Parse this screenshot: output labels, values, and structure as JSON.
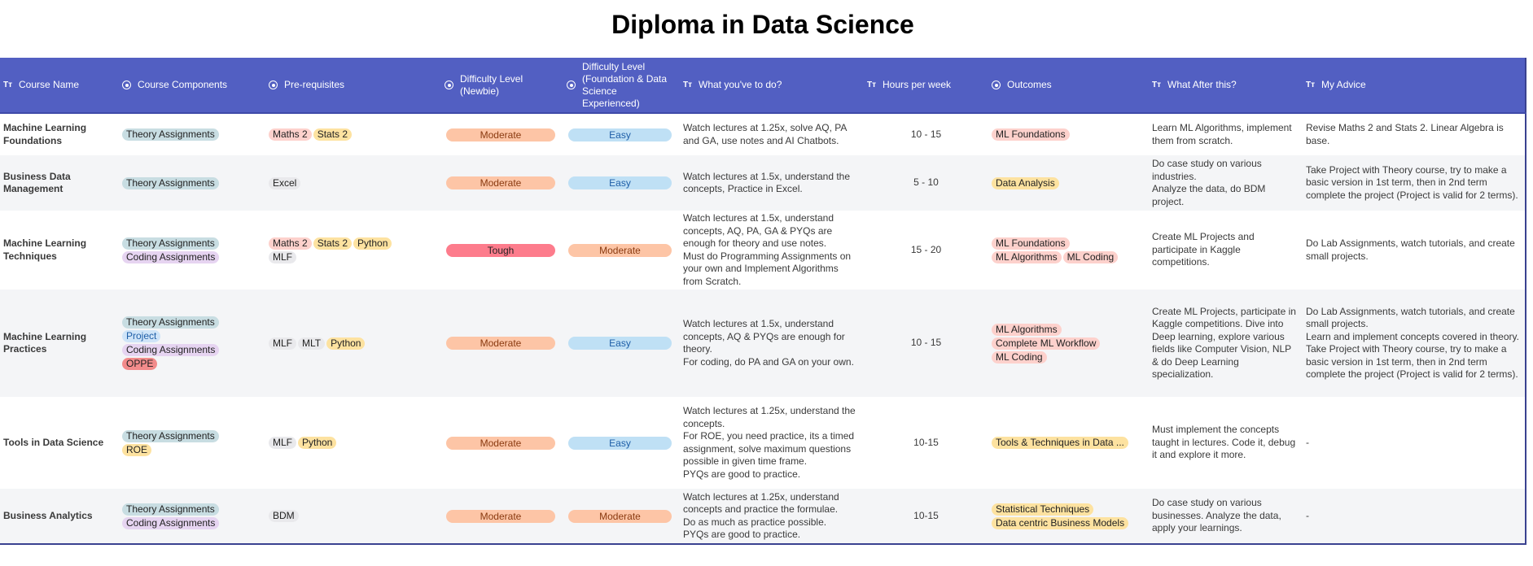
{
  "title": "Diploma in Data Science",
  "colors": {
    "header": "#525fc2",
    "Moderate": "#fdc5a6",
    "Easy": "#bfe0f5",
    "Tough": "#fd7c8c"
  },
  "columns": [
    {
      "label": "Course Name",
      "icon": "text-type-icon"
    },
    {
      "label": "Course Components",
      "icon": "select-icon"
    },
    {
      "label": "Pre-requisites",
      "icon": "select-icon"
    },
    {
      "label": "Difficulty Level (Newbie)",
      "icon": "select-icon"
    },
    {
      "label": "Difficulty Level (Foundation & Data Science Experienced)",
      "icon": "select-icon"
    },
    {
      "label": "What you've to do?",
      "icon": "text-type-icon"
    },
    {
      "label": "Hours per week",
      "icon": "text-type-icon"
    },
    {
      "label": "Outcomes",
      "icon": "select-icon"
    },
    {
      "label": "What After this?",
      "icon": "text-type-icon"
    },
    {
      "label": "My Advice",
      "icon": "text-type-icon"
    }
  ],
  "rows": [
    {
      "name": "Machine Learning Foundations",
      "components": [
        "Theory Assignments"
      ],
      "prereqs": [
        "Maths 2",
        "Stats 2"
      ],
      "newbie": "Moderate",
      "experienced": "Easy",
      "todo": "Watch lectures at 1.25x, solve AQ, PA and GA, use notes and AI Chatbots.",
      "hours": "10 - 15",
      "outcomes": [
        "ML Foundations"
      ],
      "after": "Learn ML Algorithms, implement them from scratch.",
      "advice": "Revise Maths 2 and Stats 2. Linear Algebra is base."
    },
    {
      "name": "Business Data Management",
      "components": [
        "Theory Assignments"
      ],
      "prereqs": [
        "Excel"
      ],
      "newbie": "Moderate",
      "experienced": "Easy",
      "todo": "Watch lectures at 1.5x, understand the concepts, Practice in Excel.",
      "hours": "5 - 10",
      "outcomes": [
        "Data Analysis"
      ],
      "after": "Do case study on various industries.\nAnalyze the data, do BDM project.",
      "advice": "Take Project with Theory course, try to make a basic version in 1st term, then in 2nd term complete the project (Project is valid for 2 terms)."
    },
    {
      "name": "Machine Learning Techniques",
      "components": [
        "Theory Assignments",
        "Coding Assignments"
      ],
      "prereqs": [
        "Maths 2",
        "Stats 2",
        "Python",
        "MLF"
      ],
      "newbie": "Tough",
      "experienced": "Moderate",
      "todo": "Watch lectures at 1.5x, understand concepts, AQ, PA, GA & PYQs are enough for theory and use notes.\nMust do Programming Assignments on your own and Implement Algorithms from Scratch.",
      "hours": "15 - 20",
      "outcomes": [
        "ML Foundations",
        "ML Algorithms",
        "ML Coding"
      ],
      "after": "Create ML Projects and participate in Kaggle competitions.",
      "advice": "Do Lab Assignments, watch tutorials, and create small projects."
    },
    {
      "name": "Machine Learning Practices",
      "components": [
        "Theory Assignments",
        "Project",
        "Coding Assignments",
        "OPPE"
      ],
      "prereqs": [
        "MLF",
        "MLT",
        "Python"
      ],
      "newbie": "Moderate",
      "experienced": "Easy",
      "todo": "Watch lectures at 1.5x, understand concepts, AQ & PYQs are enough for theory.\nFor coding, do PA and GA on your own.",
      "hours": "10 - 15",
      "outcomes": [
        "ML Algorithms",
        "Complete ML Workflow",
        "ML Coding"
      ],
      "after": "Create ML Projects, participate in Kaggle competitions. Dive into Deep learning, explore various fields like Computer Vision, NLP & do Deep Learning specialization.",
      "advice": "Do Lab Assignments, watch tutorials, and create small projects.\nLearn and implement concepts covered in theory.\nTake Project with Theory course, try to make a basic version in 1st term, then in 2nd term complete the project (Project is valid for 2 terms)."
    },
    {
      "name": "Tools in Data Science",
      "components": [
        "Theory Assignments",
        "ROE"
      ],
      "prereqs": [
        "MLF",
        "Python"
      ],
      "newbie": "Moderate",
      "experienced": "Easy",
      "todo": "Watch lectures at 1.25x, understand the concepts.\nFor ROE, you need practice, its a timed assignment, solve maximum questions possible in given time frame.\n PYQs are good to practice.",
      "hours": "10-15",
      "outcomes": [
        "Tools & Techniques in Data ..."
      ],
      "after": "Must implement the concepts taught in lectures. Code it, debug it and explore it more.",
      "advice": "-"
    },
    {
      "name": "Business Analytics",
      "components": [
        "Theory Assignments",
        "Coding Assignments"
      ],
      "prereqs": [
        "BDM"
      ],
      "newbie": "Moderate",
      "experienced": "Moderate",
      "todo": "Watch lectures at 1.25x, understand concepts and practice the formulae.\nDo as much as practice possible.\nPYQs are good to practice.",
      "hours": "10-15",
      "outcomes": [
        "Statistical Techniques",
        "Data centric Business Models"
      ],
      "after": "Do case study on various businesses. Analyze the data, apply your learnings.",
      "advice": "-"
    }
  ],
  "tag_colors": {
    "Theory Assignments": "#c8dde2",
    "Coding Assignments": "#e6d4f1",
    "Project": "#cfe4f8",
    "OPPE": "#f28b8b",
    "ROE": "#fde2a0",
    "Maths 2": "#fdd1cc",
    "Stats 2": "#fde2a0",
    "Python": "#fde2a0",
    "MLF": "#e9e9ec",
    "MLT": "#e9e9ec",
    "Excel": "#e9e9ec",
    "BDM": "#e9e9ec",
    "ML Foundations": "#fdd1cc",
    "ML Algorithms": "#fdd1cc",
    "ML Coding": "#fdd1cc",
    "Complete ML Workflow": "#fdd1cc",
    "Data Analysis": "#fde2a0",
    "Tools & Techniques in Data ...": "#fde2a0",
    "Statistical Techniques": "#fde2a0",
    "Data centric Business Models": "#fde2a0"
  }
}
